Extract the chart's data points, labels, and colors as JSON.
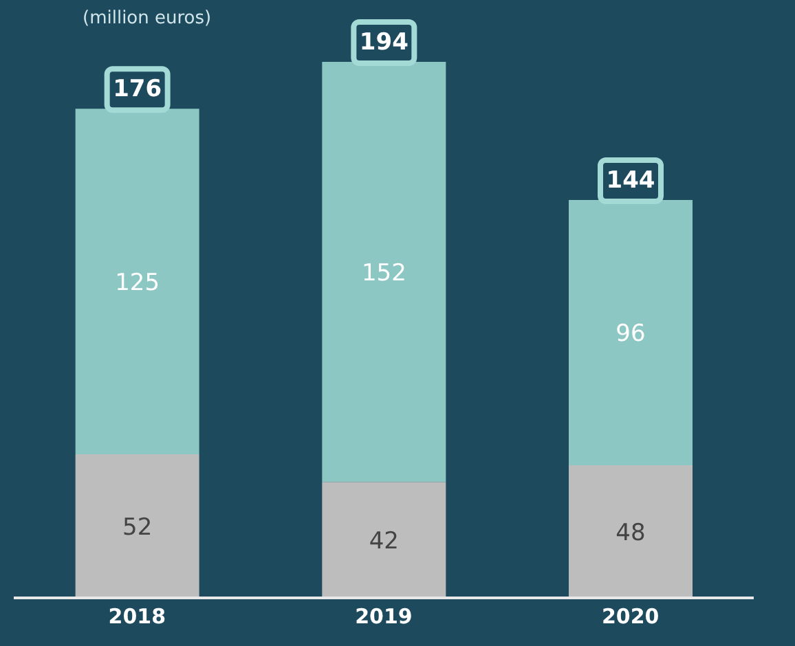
{
  "chart_data": {
    "type": "bar",
    "subtitle": "(million euros)",
    "categories": [
      "2018",
      "2019",
      "2020"
    ],
    "stacked": true,
    "data_labels": true,
    "series": [
      {
        "color": "#bdbdbd",
        "values": [
          52,
          42,
          48
        ]
      },
      {
        "color": "#8cc7c3",
        "values": [
          125,
          152,
          96
        ]
      }
    ],
    "totals": [
      "176",
      "194",
      "144"
    ],
    "grid": false,
    "legend": false
  }
}
